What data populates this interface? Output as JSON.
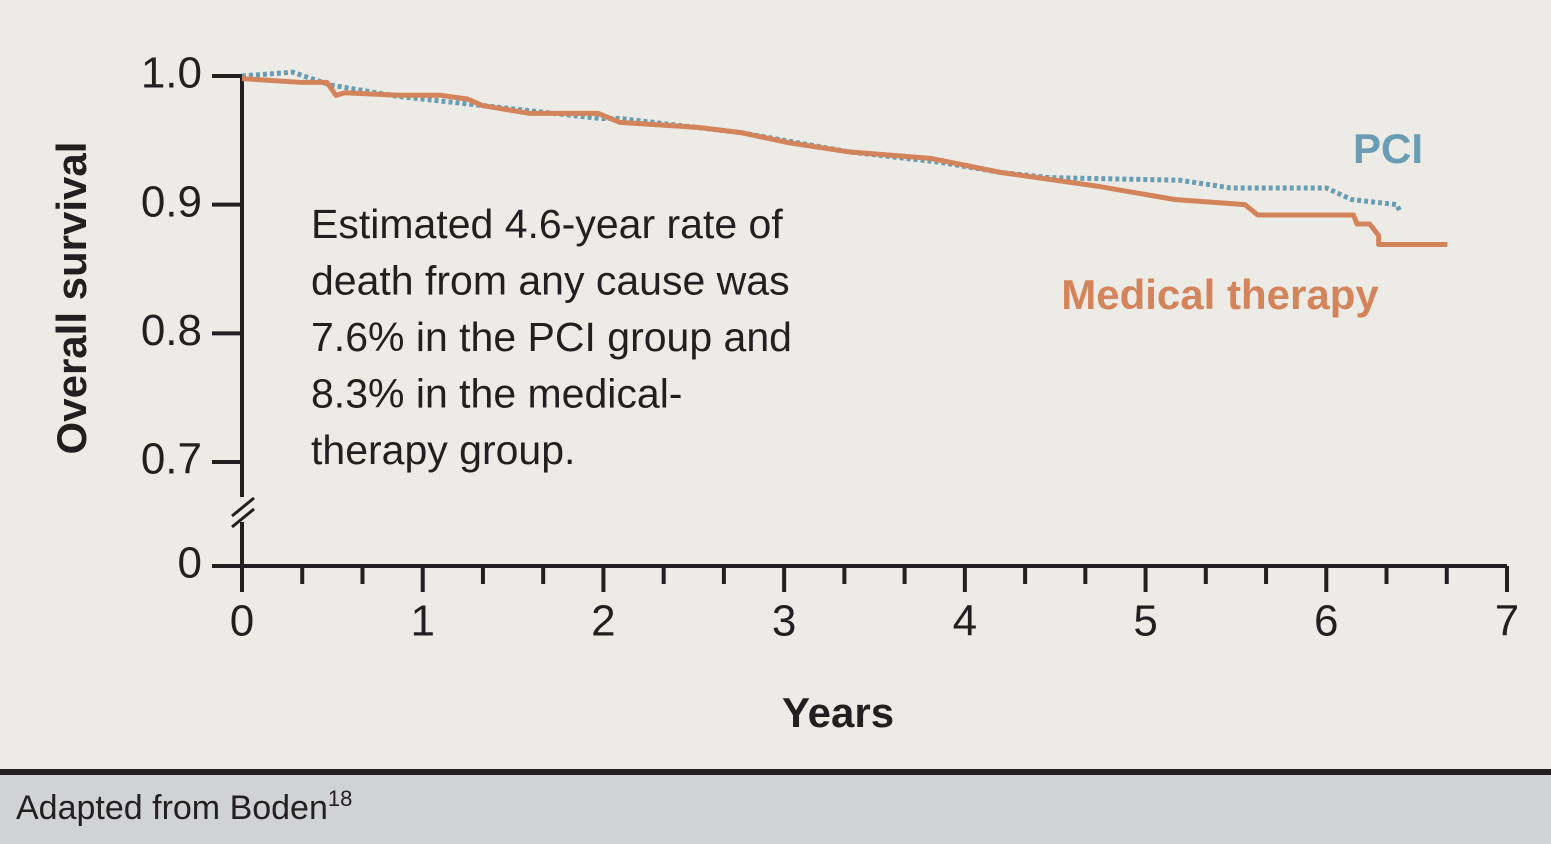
{
  "chart_data": {
    "type": "line",
    "x_label": "Years",
    "y_label": "Overall survival",
    "annotation_lines": [
      "Estimated 4.6-year rate of",
      "death from any cause was",
      "7.6% in the PCI group and",
      "8.3% in the medical-",
      "therapy group."
    ],
    "source": {
      "text": "Adapted from Boden",
      "superscript": "18"
    },
    "xlim": [
      0,
      7
    ],
    "xticks": [
      0,
      1,
      2,
      3,
      4,
      5,
      6,
      7
    ],
    "x_minor_per_major": 3,
    "ylim": [
      0,
      1.0
    ],
    "axis_break": [
      0,
      0.7
    ],
    "yticks": [
      0,
      0.7,
      0.8,
      0.9,
      {
        "value": 1.0,
        "label": "1.0"
      }
    ],
    "series": [
      {
        "name": "PCI",
        "color": "#6a9db3",
        "dashed": true,
        "x": [
          0,
          0.28,
          0.49,
          0.87,
          1.27,
          1.98,
          2.09,
          2.76,
          3.36,
          3.86,
          4.2,
          4.47,
          5.19,
          5.47,
          6.0,
          6.14,
          6.39,
          6.41
        ],
        "values": [
          1.0,
          1.003,
          0.993,
          0.984,
          0.978,
          0.967,
          0.967,
          0.956,
          0.941,
          0.933,
          0.925,
          0.921,
          0.919,
          0.913,
          0.913,
          0.904,
          0.9,
          0.894
        ]
      },
      {
        "name": "Medical therapy",
        "color": "#d4845a",
        "dashed": false,
        "x": [
          0,
          0.33,
          0.47,
          0.52,
          0.57,
          0.87,
          1.1,
          1.25,
          1.33,
          1.59,
          1.97,
          2.09,
          2.53,
          2.76,
          3.03,
          3.36,
          3.81,
          4.2,
          4.75,
          5.16,
          5.55,
          5.62,
          6.15,
          6.17,
          6.24,
          6.29,
          6.29,
          6.67
        ],
        "values": [
          0.998,
          0.995,
          0.995,
          0.985,
          0.987,
          0.985,
          0.985,
          0.982,
          0.977,
          0.971,
          0.971,
          0.964,
          0.96,
          0.956,
          0.948,
          0.941,
          0.936,
          0.925,
          0.914,
          0.904,
          0.9,
          0.892,
          0.892,
          0.885,
          0.885,
          0.876,
          0.869,
          0.869
        ]
      }
    ]
  }
}
